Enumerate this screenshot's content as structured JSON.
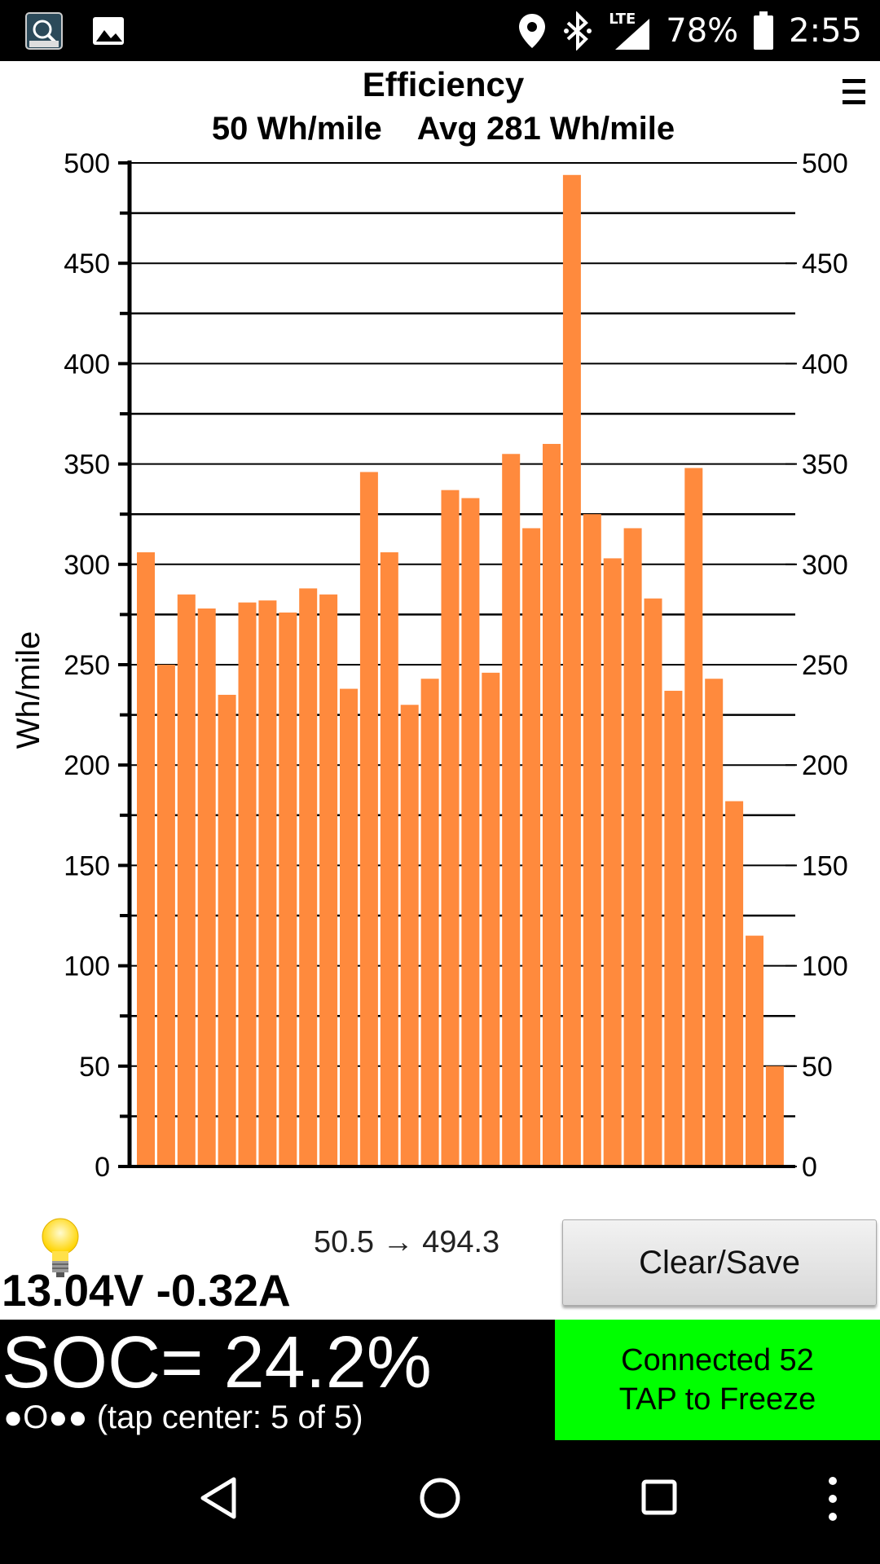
{
  "status_bar": {
    "battery": "78%",
    "time": "2:55",
    "network": "LTE",
    "icons": [
      "app-icon",
      "image-icon",
      "location-icon",
      "bluetooth-icon",
      "signal-icon",
      "battery-icon"
    ]
  },
  "header": {
    "title": "Efficiency",
    "subtitle": "50 Wh/mile    Avg 281 Wh/mile",
    "menu_icon": "menu-icon"
  },
  "chart_data": {
    "type": "bar",
    "title": "Efficiency",
    "ylabel": "Wh/mile",
    "xlabel": "",
    "ylim": [
      0,
      500
    ],
    "yticks": [
      0,
      50,
      100,
      150,
      200,
      250,
      300,
      350,
      400,
      450,
      500
    ],
    "grid": true,
    "bar_color": "#ff8a3d",
    "values": [
      306,
      250,
      285,
      278,
      235,
      281,
      282,
      276,
      288,
      285,
      238,
      346,
      306,
      230,
      243,
      337,
      333,
      246,
      355,
      318,
      360,
      494,
      325,
      303,
      318,
      283,
      237,
      348,
      243,
      182,
      115,
      50
    ]
  },
  "info": {
    "bulb_icon": "lightbulb-icon",
    "range": "50.5 → 494.3",
    "voltage_current": "13.04V -0.32A",
    "clear_save_label": "Clear/Save"
  },
  "soc": {
    "text": "SOC= 24.2%",
    "tap_center": "●O●● (tap center: 5 of 5)"
  },
  "connection": {
    "line1": "Connected 52",
    "line2": "TAP to Freeze",
    "color": "#00ff00"
  },
  "nav_bar": {
    "icons": [
      "back-icon",
      "home-icon",
      "recents-icon",
      "more-icon"
    ]
  }
}
